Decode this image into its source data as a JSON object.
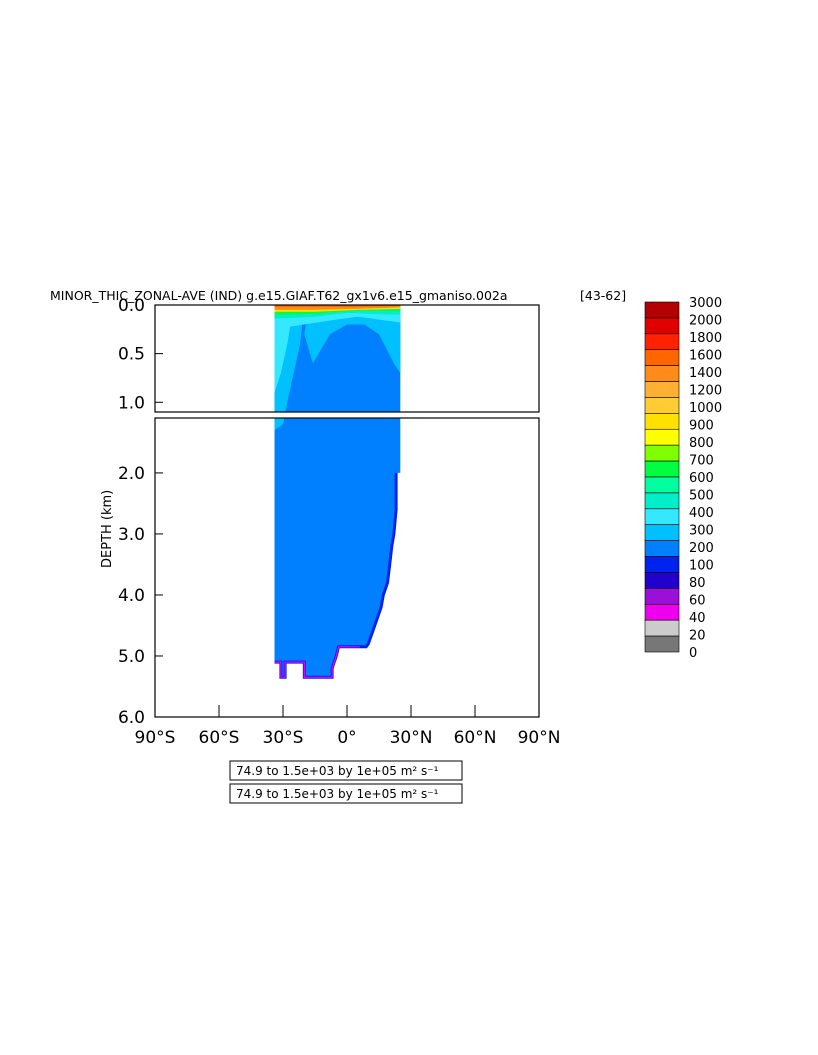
{
  "chart_data": {
    "type": "heatmap",
    "title": "MINOR_THIC_ZONAL-AVE (IND) g.e15.GIAF.T62_gx1v6.e15_gmaniso.002a",
    "title_suffix": "[43-62]",
    "ylabel": "DEPTH (km)",
    "xlabel": "",
    "x_ticks": [
      "90°S",
      "60°S",
      "30°S",
      "0°",
      "30°N",
      "60°N",
      "90°N"
    ],
    "x_tick_values": [
      -90,
      -60,
      -30,
      0,
      30,
      60,
      90
    ],
    "xlim": [
      -90,
      90
    ],
    "upper_panel": {
      "ylim": [
        0.0,
        1.1
      ],
      "y_ticks": [
        "0.0",
        "0.5",
        "1.0"
      ],
      "y_tick_values": [
        0.0,
        0.5,
        1.0
      ]
    },
    "lower_panel": {
      "ylim": [
        1.1,
        6.0
      ],
      "y_ticks": [
        "2.0",
        "3.0",
        "4.0",
        "5.0",
        "6.0"
      ],
      "y_tick_values": [
        2.0,
        3.0,
        4.0,
        5.0,
        6.0
      ]
    },
    "data_extent": {
      "lat_min": -34,
      "lat_max": 25,
      "max_depth_km": 5.35
    },
    "colorbar": {
      "labels": [
        "3000",
        "2000",
        "1800",
        "1600",
        "1400",
        "1200",
        "1000",
        "900",
        "800",
        "700",
        "600",
        "500",
        "400",
        "300",
        "200",
        "100",
        "80",
        "60",
        "40",
        "20",
        "0"
      ],
      "colors": [
        "#b30000",
        "#e00000",
        "#ff2200",
        "#ff6600",
        "#ff8c1a",
        "#ffb033",
        "#ffcc33",
        "#ffe000",
        "#ffff00",
        "#80ff00",
        "#00ff40",
        "#00ffa0",
        "#00eec8",
        "#33e8ff",
        "#00c0ff",
        "#0080ff",
        "#0022ee",
        "#2200cc",
        "#9a10d8",
        "#ee00ee",
        "#cccccc",
        "#777777"
      ]
    },
    "annotations": [
      "74.9 to 1.5e+03 by 1e+05 m² s⁻¹",
      "74.9 to 1.5e+03 by 1e+05 m² s⁻¹"
    ]
  }
}
